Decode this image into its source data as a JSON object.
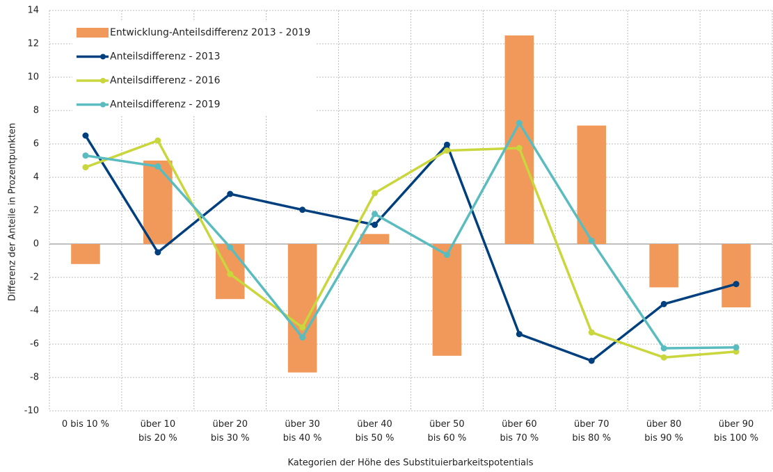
{
  "chart_data": {
    "type": "bar",
    "xlabel": "Kategorien der Höhe des Substituierbarkeitspotentials",
    "ylabel": "Differenz der Anteile in Prozentpunkten",
    "categories": [
      "0 bis 10 %",
      "über 10\nbis 20 %",
      "über 20\nbis 30 %",
      "über 30\nbis 40 %",
      "über 40\nbis 50 %",
      "über 50\nbis 60 %",
      "über 60\nbis 70 %",
      "über 70\nbis 80 %",
      "über 80\nbis 90 %",
      "über 90\nbis 100 %"
    ],
    "series": [
      {
        "name": "Entwicklung-Anteilsdifferenz 2013 - 2019",
        "type": "bar",
        "color": "#f0995a",
        "values": [
          -1.2,
          5.0,
          -3.3,
          -7.7,
          0.6,
          -6.7,
          12.5,
          7.1,
          -2.6,
          -3.8
        ]
      },
      {
        "name": "Anteilsdifferenz - 2013",
        "type": "line",
        "color": "#003f7d",
        "values": [
          6.5,
          -0.5,
          3.0,
          2.05,
          1.15,
          5.95,
          -5.4,
          -7.0,
          -3.6,
          -2.4
        ]
      },
      {
        "name": "Anteilsdifferenz - 2016",
        "type": "line",
        "color": "#c9d63c",
        "values": [
          4.6,
          6.2,
          -1.8,
          -5.0,
          3.05,
          5.6,
          5.75,
          -5.3,
          -6.8,
          -6.45
        ]
      },
      {
        "name": "Anteilsdifferenz - 2019",
        "type": "line",
        "color": "#5bbcc0",
        "values": [
          5.3,
          4.65,
          -0.2,
          -5.6,
          1.8,
          -0.65,
          7.25,
          0.2,
          -6.25,
          -6.2
        ]
      }
    ],
    "ylim": [
      -10,
      14
    ],
    "yticks": [
      -10,
      -8,
      -6,
      -4,
      -2,
      0,
      2,
      4,
      6,
      8,
      10,
      12,
      14
    ],
    "grid": true,
    "legend": "upper left"
  }
}
